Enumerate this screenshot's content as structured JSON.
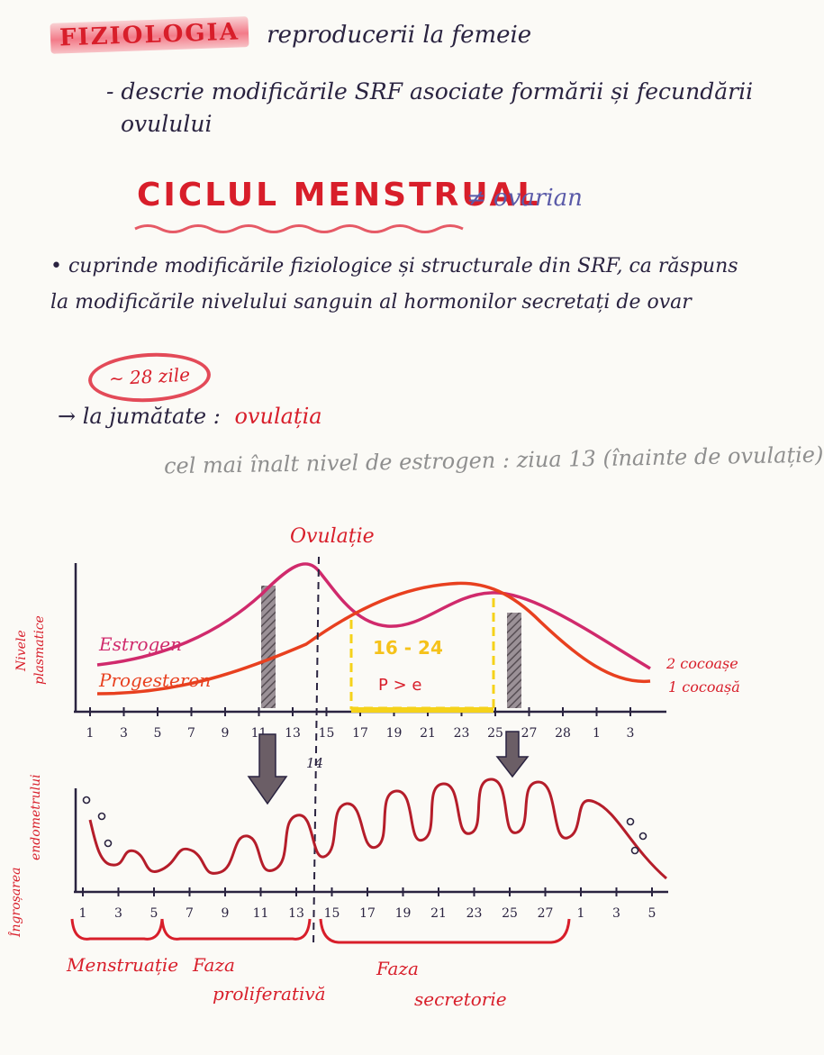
{
  "header": {
    "highlight": "FIZIOLOGIA",
    "title_rest": "reproducerii la femeie",
    "objective_line1": "- descrie modificările SRF asociate formării și fecundării",
    "objective_line2": "ovulului"
  },
  "heading": {
    "main": "CICLUL MENSTRUAL",
    "contrast": "≠ ovarian"
  },
  "bullet": "• cuprinde modificările fiziologice și structurale din SRF, ca răspuns la modificările nivelului sanguin al hormonilor secretați de ovar",
  "cycle_length": "~ 28 zile",
  "ovulation_note": {
    "prefix": "→ la jumătate :",
    "term": "ovulația"
  },
  "estrogen_note": "cel mai înalt nivel de estrogen : ziua 13 (înainte de ovulație)",
  "chart": {
    "ovulation_label": "Ovulație",
    "y_label_top": "Nivele",
    "y_label_bottom": "plasmatice",
    "estrogen_label": "Estrogen",
    "progesteron_label": "Progesteron",
    "range_label": "16 - 24",
    "compare_label": "P > e",
    "estrogen_humps": "2 cocoașe",
    "progesteron_humps": "1 cocoașă",
    "day_ticks": [
      "1",
      "3",
      "5",
      "7",
      "9",
      "11",
      "13",
      "15",
      "17",
      "19",
      "21",
      "23",
      "25",
      "27",
      "28",
      "1",
      "3"
    ],
    "ovulation_day": "14",
    "colors": {
      "estrogen": "#d02a6c",
      "progesteron": "#e8401f",
      "yellow": "#f5d21a",
      "ink": "#2a2340",
      "red": "#d81e2a"
    }
  },
  "endometrium": {
    "y_label_top": "Îngroșarea",
    "y_label_bottom": "endometrului",
    "day_ticks": [
      "1",
      "3",
      "5",
      "7",
      "9",
      "11",
      "13",
      "15",
      "17",
      "19",
      "21",
      "23",
      "25",
      "27",
      "1",
      "3",
      "5"
    ],
    "phases": [
      {
        "line1": "Menstruație",
        "line2": ""
      },
      {
        "line1": "Faza",
        "line2": "proliferativă"
      },
      {
        "line1": "Faza",
        "line2": "secretorie"
      }
    ]
  }
}
